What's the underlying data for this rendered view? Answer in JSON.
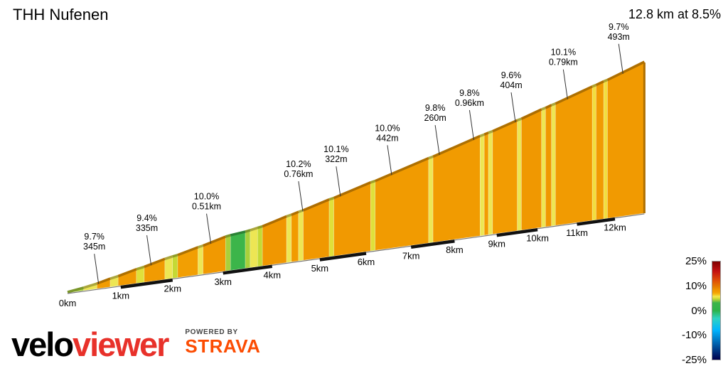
{
  "header": {
    "title": "THH Nufenen",
    "summary": "12.8 km at 8.5%"
  },
  "chart_data": {
    "type": "area",
    "title": "THH Nufenen",
    "subtitle": "12.8 km at 8.5%",
    "x_unit": "km",
    "xlim": [
      0,
      12.8
    ],
    "total_distance_km": 12.8,
    "avg_gradient_pct": 8.5,
    "x_ticks": [
      "0km",
      "1km",
      "2km",
      "3km",
      "4km",
      "5km",
      "6km",
      "7km",
      "8km",
      "9km",
      "10km",
      "11km",
      "12km"
    ],
    "grid": false,
    "legend_position": "bottom-right",
    "segments_key": [
      "from_km",
      "to_km",
      "avg_gradient_pct"
    ],
    "segments": [
      [
        0,
        0.3,
        5.5
      ],
      [
        0.3,
        0.55,
        7
      ],
      [
        0.55,
        0.8,
        9.6
      ],
      [
        0.8,
        0.95,
        7
      ],
      [
        0.95,
        1.3,
        9.7
      ],
      [
        1.3,
        1.45,
        6.5
      ],
      [
        1.45,
        1.85,
        9.7
      ],
      [
        1.85,
        2.0,
        7
      ],
      [
        2.0,
        2.1,
        6
      ],
      [
        2.1,
        2.5,
        9.4
      ],
      [
        2.5,
        2.6,
        7
      ],
      [
        2.6,
        3.05,
        10
      ],
      [
        3.05,
        3.15,
        5.5
      ],
      [
        3.15,
        3.45,
        4
      ],
      [
        3.45,
        3.55,
        5.5
      ],
      [
        3.55,
        3.7,
        7
      ],
      [
        3.7,
        3.8,
        6
      ],
      [
        3.8,
        4.3,
        10.2
      ],
      [
        4.3,
        4.4,
        7
      ],
      [
        4.4,
        4.55,
        9.8
      ],
      [
        4.55,
        4.65,
        7
      ],
      [
        4.65,
        5.2,
        10.1
      ],
      [
        5.2,
        5.3,
        6.5
      ],
      [
        5.3,
        6.1,
        10
      ],
      [
        6.1,
        6.2,
        6.5
      ],
      [
        6.2,
        7.4,
        9.8
      ],
      [
        7.4,
        7.5,
        7
      ],
      [
        7.5,
        8.6,
        9.8
      ],
      [
        8.6,
        8.7,
        7
      ],
      [
        8.7,
        8.8,
        9.6
      ],
      [
        8.8,
        8.9,
        7
      ],
      [
        8.9,
        9.5,
        9.6
      ],
      [
        9.5,
        9.6,
        7
      ],
      [
        9.6,
        10.1,
        10.1
      ],
      [
        10.1,
        10.2,
        7
      ],
      [
        10.2,
        10.35,
        10.1
      ],
      [
        10.35,
        10.45,
        7
      ],
      [
        10.45,
        11.4,
        9.7
      ],
      [
        11.4,
        11.5,
        7.5
      ],
      [
        11.5,
        11.7,
        9.7
      ],
      [
        11.7,
        11.8,
        7.5
      ],
      [
        11.8,
        12.8,
        9.9
      ]
    ],
    "annotations": [
      {
        "km": 0.5,
        "gradient": "9.7%",
        "length": "345m"
      },
      {
        "km": 1.5,
        "gradient": "9.4%",
        "length": "335m"
      },
      {
        "km": 2.67,
        "gradient": "10.0%",
        "length": "0.51km"
      },
      {
        "km": 4.55,
        "gradient": "10.2%",
        "length": "0.76km"
      },
      {
        "km": 5.35,
        "gradient": "10.1%",
        "length": "322m"
      },
      {
        "km": 6.47,
        "gradient": "10.0%",
        "length": "442m"
      },
      {
        "km": 7.55,
        "gradient": "9.8%",
        "length": "260m"
      },
      {
        "km": 8.35,
        "gradient": "9.8%",
        "length": "0.96km"
      },
      {
        "km": 9.35,
        "gradient": "9.6%",
        "length": "404m"
      },
      {
        "km": 10.65,
        "gradient": "10.1%",
        "length": "0.79km"
      },
      {
        "km": 12.1,
        "gradient": "9.7%",
        "length": "493m"
      }
    ],
    "gradient_color_stops": [
      [
        -25,
        "#00004d"
      ],
      [
        -10,
        "#00b4ff"
      ],
      [
        -4,
        "#2fd3c3"
      ],
      [
        0,
        "#2db34a"
      ],
      [
        4,
        "#3cb54a"
      ],
      [
        5,
        "#8dc63f"
      ],
      [
        6,
        "#c5d935"
      ],
      [
        6.5,
        "#e0e03a"
      ],
      [
        7,
        "#ede654"
      ],
      [
        7.5,
        "#f2de3f"
      ],
      [
        8,
        "#f5c41e"
      ],
      [
        9,
        "#f4a706"
      ],
      [
        9.5,
        "#f29d02"
      ],
      [
        10.5,
        "#ef9500"
      ],
      [
        12,
        "#e67e00"
      ],
      [
        15,
        "#e05206"
      ],
      [
        20,
        "#c41111"
      ],
      [
        25,
        "#800000"
      ]
    ],
    "legend": {
      "labels": [
        "25%",
        "10%",
        "0%",
        "-10%",
        "-25%"
      ],
      "range": [
        -25,
        25
      ]
    }
  },
  "footer": {
    "logo_black": "velo",
    "logo_red": "viewer",
    "powered_by": "POWERED BY",
    "strava": "STRAVA"
  }
}
